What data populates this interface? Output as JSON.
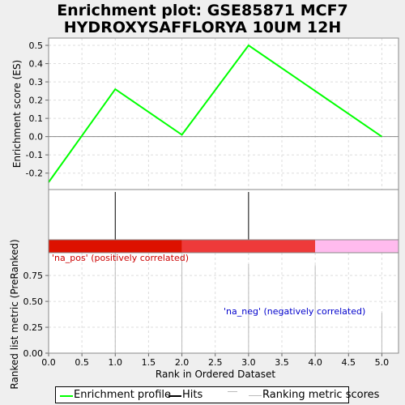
{
  "title_line1": "Enrichment plot: GSE85871 MCF7",
  "title_line2": "HYDROXYSAFFLORYA 10UM 12H",
  "colors": {
    "enrichment_line": "#00ff00",
    "hits": "#000000",
    "ranking_bars": "#bbbbbb",
    "pos_label": "#cc0000",
    "neg_label": "#0000cc",
    "heat_segments": [
      "#dd1100",
      "#ee3a3a",
      "#ffbbee"
    ]
  },
  "chart_data": [
    {
      "type": "line",
      "name": "enrichment-profile",
      "x": [
        0,
        1,
        2,
        3,
        5
      ],
      "y": [
        -0.25,
        0.26,
        0.01,
        0.5,
        0.0
      ],
      "ylabel": "Enrichment score (ES)",
      "ylim": [
        -0.29,
        0.54
      ],
      "yticks": [
        -0.2,
        -0.1,
        0.0,
        0.1,
        0.2,
        0.3,
        0.4,
        0.5
      ],
      "ytick_labels": [
        "-0.2",
        "-0.1",
        "0.0",
        "0.1",
        "0.2",
        "0.3",
        "0.4",
        "0.5"
      ],
      "xlim": [
        0,
        5.25
      ],
      "grid": true
    },
    {
      "type": "hits",
      "name": "hits",
      "x": [
        1,
        3
      ]
    },
    {
      "type": "heatmap",
      "name": "ranking-heat-strip",
      "segments": [
        {
          "from": 0,
          "to": 2,
          "color": "#dd1100"
        },
        {
          "from": 2,
          "to": 4,
          "color": "#ee3a3a"
        },
        {
          "from": 4,
          "to": 5.25,
          "color": "#ffbbee"
        }
      ]
    },
    {
      "type": "bar",
      "name": "ranked-list-metric",
      "x": [
        1,
        2,
        3,
        4,
        5
      ],
      "values": [
        1.0,
        0.95,
        0.86,
        0.85,
        0.39
      ],
      "ylabel": "Ranked list metric (PreRanked)",
      "xlabel": "Rank in Ordered Dataset",
      "ylim": [
        0,
        0.97
      ],
      "yticks": [
        0.0,
        0.25,
        0.5,
        0.75
      ],
      "ytick_labels": [
        "0.00",
        "0.25",
        "0.50",
        "0.75"
      ],
      "xticks": [
        0,
        0.5,
        1,
        1.5,
        2,
        2.5,
        3,
        3.5,
        4,
        4.5,
        5
      ],
      "xtick_labels": [
        "0.0",
        "0.5",
        "1.0",
        "1.5",
        "2.0",
        "2.5",
        "3.0",
        "3.5",
        "4.0",
        "4.5",
        "5.0"
      ],
      "xlim": [
        0,
        5.25
      ],
      "grid": true,
      "annotations": [
        {
          "text": "'na_pos' (positively correlated)",
          "color": "#cc0000"
        },
        {
          "text": "'na_neg' (negatively correlated)",
          "color": "#0000cc"
        }
      ]
    }
  ],
  "legend": {
    "items": [
      {
        "label": "Enrichment profile",
        "color": "#00ff00"
      },
      {
        "label": "Hits",
        "color": "#000000"
      },
      {
        "label": "Ranking metric scores",
        "color": "#bbbbbb"
      }
    ]
  }
}
